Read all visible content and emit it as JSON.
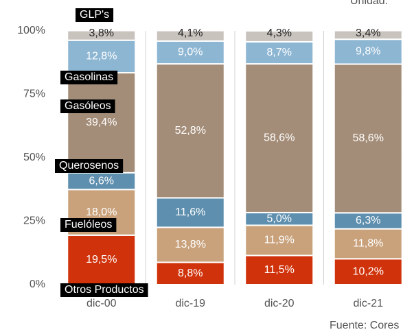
{
  "chart_data": {
    "type": "stacked_bar",
    "unit_note": "Unidad: ",
    "source": "Fuente: Cores",
    "categories": [
      "dic-00",
      "dic-19",
      "dic-20",
      "dic-21"
    ],
    "ylim": [
      0,
      100
    ],
    "yticks": [
      {
        "value": 0,
        "label": "0%"
      },
      {
        "value": 25,
        "label": "25%"
      },
      {
        "value": 50,
        "label": "50%"
      },
      {
        "value": 75,
        "label": "75%"
      },
      {
        "value": 100,
        "label": "100%"
      }
    ],
    "series": [
      {
        "name": "Otros Productos",
        "color": "#d0330b",
        "values": [
          19.5,
          8.8,
          11.5,
          10.2
        ],
        "value_labels": [
          "19,5%",
          "8,8%",
          "11,5%",
          "10,2%"
        ]
      },
      {
        "name": "Fuelóleos",
        "color": "#c9a27c",
        "values": [
          18.0,
          13.8,
          11.9,
          11.8
        ],
        "value_labels": [
          "18,0%",
          "13,8%",
          "11,9%",
          "11,8%"
        ]
      },
      {
        "name": "Querosenos",
        "color": "#5e8fae",
        "values": [
          6.6,
          11.6,
          5.0,
          6.3
        ],
        "value_labels": [
          "6,6%",
          "11,6%",
          "5,0%",
          "6,3%"
        ]
      },
      {
        "name": "Gasóleos",
        "color": "#a48d78",
        "values": [
          39.4,
          52.8,
          58.6,
          58.6
        ],
        "value_labels": [
          "39,4%",
          "52,8%",
          "58,6%",
          "58,6%"
        ]
      },
      {
        "name": "Gasolinas",
        "color": "#8db6d3",
        "values": [
          12.8,
          9.0,
          8.7,
          9.8
        ],
        "value_labels": [
          "12,8%",
          "9,0%",
          "8,7%",
          "9,8%"
        ]
      },
      {
        "name": "GLP's",
        "color": "#c9c3bd",
        "values": [
          3.8,
          4.1,
          4.3,
          3.4
        ],
        "value_labels": [
          "3,8%",
          "4,1%",
          "4,3%",
          "3,4%"
        ]
      }
    ]
  }
}
